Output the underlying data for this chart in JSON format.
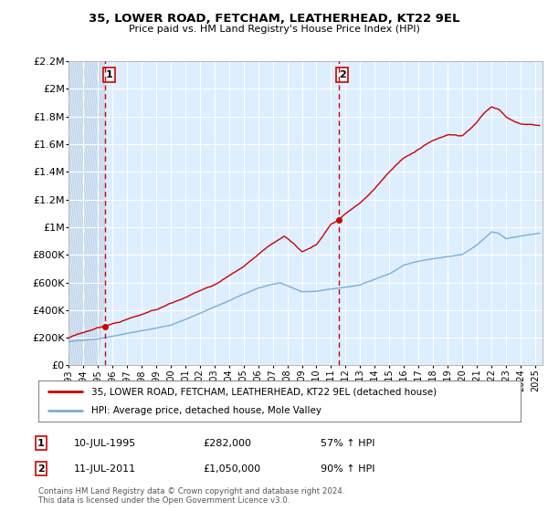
{
  "title1": "35, LOWER ROAD, FETCHAM, LEATHERHEAD, KT22 9EL",
  "title2": "Price paid vs. HM Land Registry's House Price Index (HPI)",
  "legend_line1": "35, LOWER ROAD, FETCHAM, LEATHERHEAD, KT22 9EL (detached house)",
  "legend_line2": "HPI: Average price, detached house, Mole Valley",
  "marker1_label": "1",
  "marker1_date": "10-JUL-1995",
  "marker1_price": "£282,000",
  "marker1_hpi": "57% ↑ HPI",
  "marker1_x": 1995.53,
  "marker1_y": 282000,
  "marker2_label": "2",
  "marker2_date": "11-JUL-2011",
  "marker2_price": "£1,050,000",
  "marker2_hpi": "90% ↑ HPI",
  "marker2_x": 2011.53,
  "marker2_y": 1050000,
  "footnote": "Contains HM Land Registry data © Crown copyright and database right 2024.\nThis data is licensed under the Open Government Licence v3.0.",
  "house_color": "#cc0000",
  "hpi_color": "#7aafd4",
  "plot_bg": "#ddeeff",
  "hatch_color": "#bbcce0",
  "grid_color": "#ffffff",
  "ylim": [
    0,
    2200000
  ],
  "xlim": [
    1993,
    2025.5
  ],
  "yticks": [
    0,
    200000,
    400000,
    600000,
    800000,
    1000000,
    1200000,
    1400000,
    1600000,
    1800000,
    2000000,
    2200000
  ],
  "xticks": [
    1993,
    1994,
    1995,
    1996,
    1997,
    1998,
    1999,
    2000,
    2001,
    2002,
    2003,
    2004,
    2005,
    2006,
    2007,
    2008,
    2009,
    2010,
    2011,
    2012,
    2013,
    2014,
    2015,
    2016,
    2017,
    2018,
    2019,
    2020,
    2021,
    2022,
    2023,
    2024,
    2025
  ]
}
